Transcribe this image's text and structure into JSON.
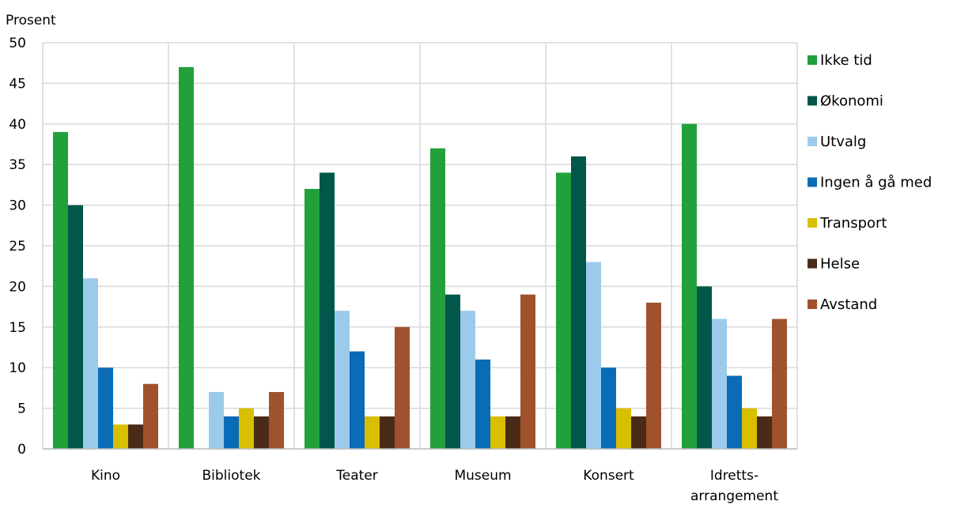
{
  "chart_data": {
    "type": "bar",
    "ylabel": "Prosent",
    "ylim": [
      0,
      50
    ],
    "yticks": [
      0,
      5,
      10,
      15,
      20,
      25,
      30,
      35,
      40,
      45,
      50
    ],
    "categories": [
      "Kino",
      "Bibliotek",
      "Teater",
      "Museum",
      "Konsert",
      "Idretts-\narrangement"
    ],
    "grid": true,
    "legend_position": "right",
    "series": [
      {
        "name": "Ikke tid",
        "color": "#22a03c",
        "values": [
          39,
          47,
          32,
          37,
          34,
          40
        ]
      },
      {
        "name": "Økonomi",
        "color": "#00574a",
        "values": [
          30,
          0,
          34,
          19,
          36,
          20
        ]
      },
      {
        "name": "Utvalg",
        "color": "#9ccaeb",
        "values": [
          21,
          7,
          17,
          17,
          23,
          16
        ]
      },
      {
        "name": "Ingen å gå med",
        "color": "#0a6bb6",
        "values": [
          10,
          4,
          12,
          11,
          10,
          9
        ]
      },
      {
        "name": "Transport",
        "color": "#d8bf00",
        "values": [
          3,
          5,
          4,
          4,
          5,
          5
        ]
      },
      {
        "name": "Helse",
        "color": "#4a2b17",
        "values": [
          3,
          4,
          4,
          4,
          4,
          4
        ]
      },
      {
        "name": "Avstand",
        "color": "#a0522d",
        "values": [
          8,
          7,
          15,
          19,
          18,
          16
        ]
      }
    ]
  }
}
